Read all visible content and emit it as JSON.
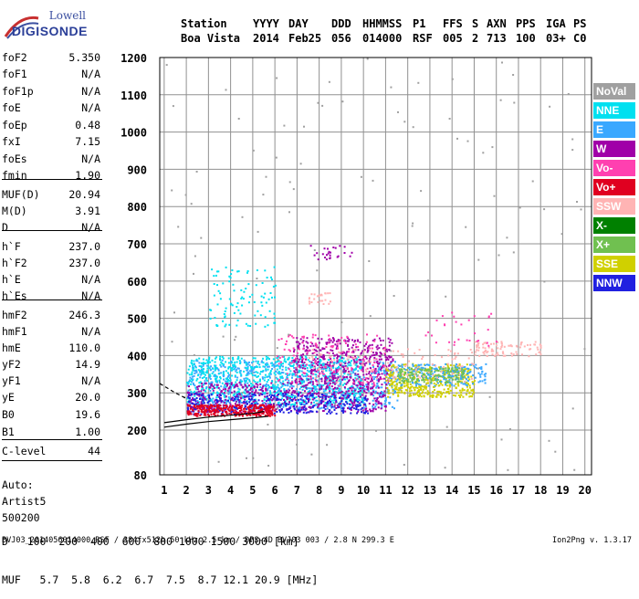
{
  "logo": {
    "line1": "Lowell",
    "line2": "DIGISONDE"
  },
  "header": {
    "labels": [
      "Station",
      "YYYY",
      "DAY",
      "DDD",
      "HHMMSS",
      "P1",
      "FFS",
      "S",
      "AXN",
      "PPS",
      "IGA",
      "PS"
    ],
    "values": [
      "Boa Vista",
      "2014",
      "Feb25",
      "056",
      "014000",
      "RSF",
      "005",
      "2",
      "713",
      "100",
      "03+",
      "C0"
    ]
  },
  "params": [
    {
      "label": "foF2",
      "value": "5.350"
    },
    {
      "label": "foF1",
      "value": "N/A"
    },
    {
      "label": "foF1p",
      "value": "N/A"
    },
    {
      "label": "foE",
      "value": "N/A"
    },
    {
      "label": "foEp",
      "value": "0.48"
    },
    {
      "label": "fxI",
      "value": "7.15"
    },
    {
      "label": "foEs",
      "value": "N/A"
    },
    {
      "label": "fmin",
      "value": "1.90"
    },
    {
      "label": "MUF(D)",
      "value": "20.94"
    },
    {
      "label": "M(D)",
      "value": "3.91"
    },
    {
      "label": "D",
      "value": "N/A"
    },
    {
      "label": "h`F",
      "value": "237.0"
    },
    {
      "label": "h`F2",
      "value": "237.0"
    },
    {
      "label": "h`E",
      "value": "N/A"
    },
    {
      "label": "h`Es",
      "value": "N/A"
    },
    {
      "label": "hmF2",
      "value": "246.3"
    },
    {
      "label": "hmF1",
      "value": "N/A"
    },
    {
      "label": "hmE",
      "value": "110.0"
    },
    {
      "label": "yF2",
      "value": "14.9"
    },
    {
      "label": "yF1",
      "value": "N/A"
    },
    {
      "label": "yE",
      "value": "20.0"
    },
    {
      "label": "B0",
      "value": "19.6"
    },
    {
      "label": "B1",
      "value": "1.00"
    },
    {
      "label": "C-level",
      "value": "44"
    }
  ],
  "autoscaling": [
    "Auto:",
    "Artist5",
    "500200"
  ],
  "legend": [
    {
      "label": "NoVal",
      "color": "#a0a0a0"
    },
    {
      "label": "NNE",
      "color": "#00e0f0"
    },
    {
      "label": "E",
      "color": "#3aa8ff"
    },
    {
      "label": "W",
      "color": "#a000a8"
    },
    {
      "label": "Vo-",
      "color": "#ff40b0"
    },
    {
      "label": "Vo+",
      "color": "#e00020"
    },
    {
      "label": "SSW",
      "color": "#ffb4b4"
    },
    {
      "label": "X-",
      "color": "#008000"
    },
    {
      "label": "X+",
      "color": "#70c050"
    },
    {
      "label": "SSE",
      "color": "#d0d000"
    },
    {
      "label": "NNW",
      "color": "#2020e0"
    }
  ],
  "dmuf": {
    "d_label": "D",
    "d_values": [
      "100",
      "200",
      "400",
      "600",
      "800",
      "1000",
      "1500",
      "3000"
    ],
    "d_unit": "[km]",
    "muf_label": "MUF",
    "muf_values": [
      "5.7",
      "5.8",
      "6.2",
      "6.7",
      "7.5",
      "8.7",
      "12.1",
      "20.9"
    ],
    "muf_unit": "[MHz]"
  },
  "footer": "BVJ03_2014056014000.RSF / 384fx512h 50 kHz 2.5 km / DPS-4D BVJ03 003 / 2.8 N 299.3 E",
  "version": "Ion2Png v. 1.3.17",
  "chart_data": {
    "type": "scatter",
    "xlim": [
      0.8,
      20.3
    ],
    "ylim": [
      80,
      1200
    ],
    "x_ticks": [
      1,
      2,
      3,
      4,
      5,
      6,
      7,
      8,
      9,
      10,
      11,
      12,
      13,
      14,
      15,
      16,
      17,
      18,
      19,
      20
    ],
    "y_ticks": [
      80,
      200,
      300,
      400,
      500,
      600,
      700,
      800,
      900,
      1000,
      1100,
      1200
    ],
    "grid": true,
    "legend_position": "right",
    "xlabel": "",
    "ylabel": "",
    "clusters": [
      {
        "series": "E",
        "x": [
          2.0,
          11.5
        ],
        "y": [
          260,
          390
        ],
        "n": 900
      },
      {
        "series": "NNE",
        "x": [
          2.0,
          10.0
        ],
        "y": [
          270,
          400
        ],
        "n": 700
      },
      {
        "series": "W",
        "x": [
          2.0,
          11.0
        ],
        "y": [
          250,
          330
        ],
        "n": 500
      },
      {
        "series": "W",
        "x": [
          6.8,
          11.3
        ],
        "y": [
          330,
          450
        ],
        "n": 400
      },
      {
        "series": "NNW",
        "x": [
          2.0,
          10.2
        ],
        "y": [
          245,
          300
        ],
        "n": 300
      },
      {
        "series": "Vo+",
        "x": [
          2.0,
          6.0
        ],
        "y": [
          240,
          270
        ],
        "n": 300
      },
      {
        "series": "Vo-",
        "x": [
          6.0,
          11.0
        ],
        "y": [
          320,
          460
        ],
        "n": 150
      },
      {
        "series": "SSE",
        "x": [
          11.0,
          15.0
        ],
        "y": [
          290,
          380
        ],
        "n": 400
      },
      {
        "series": "E",
        "x": [
          11.5,
          15.5
        ],
        "y": [
          320,
          380
        ],
        "n": 200
      },
      {
        "series": "X+",
        "x": [
          11.5,
          14.5
        ],
        "y": [
          330,
          370
        ],
        "n": 150
      },
      {
        "series": "SSW",
        "x": [
          7.5,
          15.0
        ],
        "y": [
          330,
          420
        ],
        "n": 120
      },
      {
        "series": "NNE",
        "x": [
          3.0,
          6.0
        ],
        "y": [
          480,
          640
        ],
        "n": 100
      },
      {
        "series": "SSW",
        "x": [
          15.0,
          18.0
        ],
        "y": [
          400,
          440
        ],
        "n": 90
      },
      {
        "series": "Vo-",
        "x": [
          12.5,
          16.0
        ],
        "y": [
          420,
          520
        ],
        "n": 30
      },
      {
        "series": "W",
        "x": [
          7.5,
          9.5
        ],
        "y": [
          660,
          700
        ],
        "n": 25
      },
      {
        "series": "SSW",
        "x": [
          7.5,
          8.5
        ],
        "y": [
          540,
          570
        ],
        "n": 25
      },
      {
        "series": "NoVal",
        "x": [
          1.0,
          20.0
        ],
        "y": [
          80,
          1200
        ],
        "n": 120
      }
    ],
    "traces": [
      {
        "name": "ordinary",
        "points": [
          [
            1.0,
            220
          ],
          [
            2.0,
            228
          ],
          [
            3.0,
            235
          ],
          [
            4.0,
            240
          ],
          [
            5.0,
            245
          ],
          [
            5.5,
            250
          ]
        ]
      },
      {
        "name": "extraordinary",
        "points": [
          [
            1.0,
            208
          ],
          [
            2.0,
            216
          ],
          [
            3.0,
            223
          ],
          [
            4.0,
            228
          ],
          [
            5.0,
            233
          ],
          [
            5.7,
            237
          ]
        ]
      },
      {
        "name": "dashed",
        "points": [
          [
            0.8,
            325
          ],
          [
            1.5,
            300
          ],
          [
            2.0,
            285
          ]
        ]
      }
    ]
  }
}
